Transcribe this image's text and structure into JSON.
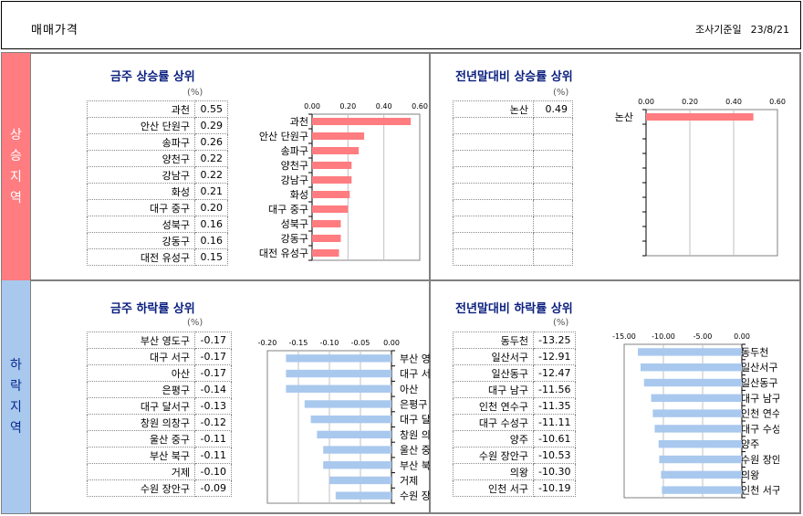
{
  "header": {
    "title": "매매가격",
    "date_label": "조사기준일",
    "date_value": "23/8/21"
  },
  "regions": {
    "rise": "상승지역",
    "fall": "하락지역"
  },
  "unit": "(%)",
  "panels": {
    "weekly_rise": {
      "title": "금주 상승률 상위",
      "rows": [
        {
          "name": "과천",
          "value": "0.55"
        },
        {
          "name": "안산 단원구",
          "value": "0.29"
        },
        {
          "name": "송파구",
          "value": "0.26"
        },
        {
          "name": "양천구",
          "value": "0.22"
        },
        {
          "name": "강남구",
          "value": "0.22"
        },
        {
          "name": "화성",
          "value": "0.21"
        },
        {
          "name": "대구 중구",
          "value": "0.20"
        },
        {
          "name": "성북구",
          "value": "0.16"
        },
        {
          "name": "강동구",
          "value": "0.16"
        },
        {
          "name": "대전 유성구",
          "value": "0.15"
        }
      ]
    },
    "ytd_rise": {
      "title": "전년말대비 상승률 상위",
      "rows": [
        {
          "name": "논산",
          "value": "0.49"
        },
        {
          "name": "",
          "value": ""
        },
        {
          "name": "",
          "value": ""
        },
        {
          "name": "",
          "value": ""
        },
        {
          "name": "",
          "value": ""
        },
        {
          "name": "",
          "value": ""
        },
        {
          "name": "",
          "value": ""
        },
        {
          "name": "",
          "value": ""
        },
        {
          "name": "",
          "value": ""
        },
        {
          "name": "",
          "value": ""
        }
      ]
    },
    "weekly_fall": {
      "title": "금주 하락률 상위",
      "rows": [
        {
          "name": "부산 영도구",
          "value": "-0.17"
        },
        {
          "name": "대구 서구",
          "value": "-0.17"
        },
        {
          "name": "아산",
          "value": "-0.17"
        },
        {
          "name": "은평구",
          "value": "-0.14"
        },
        {
          "name": "대구 달서구",
          "value": "-0.13"
        },
        {
          "name": "창원 의창구",
          "value": "-0.12"
        },
        {
          "name": "울산 중구",
          "value": "-0.11"
        },
        {
          "name": "부산 북구",
          "value": "-0.11"
        },
        {
          "name": "거제",
          "value": "-0.10"
        },
        {
          "name": "수원 장안구",
          "value": "-0.09"
        }
      ]
    },
    "ytd_fall": {
      "title": "전년말대비 하락률 상위",
      "rows": [
        {
          "name": "동두천",
          "value": "-13.25"
        },
        {
          "name": "일산서구",
          "value": "-12.91"
        },
        {
          "name": "일산동구",
          "value": "-12.47"
        },
        {
          "name": "대구 남구",
          "value": "-11.56"
        },
        {
          "name": "인천 연수구",
          "value": "-11.35"
        },
        {
          "name": "대구 수성구",
          "value": "-11.11"
        },
        {
          "name": "양주",
          "value": "-10.61"
        },
        {
          "name": "수원 장안구",
          "value": "-10.53"
        },
        {
          "name": "의왕",
          "value": "-10.30"
        },
        {
          "name": "인천 서구",
          "value": "-10.19"
        }
      ]
    }
  },
  "chart_data": [
    {
      "id": "weekly_rise",
      "type": "bar",
      "orientation": "horizontal",
      "title": "금주 상승률 상위",
      "categories": [
        "과천",
        "안산 단원구",
        "송파구",
        "양천구",
        "강남구",
        "화성",
        "대구 중구",
        "성북구",
        "강동구",
        "대전 유성구"
      ],
      "values": [
        0.55,
        0.29,
        0.26,
        0.22,
        0.22,
        0.21,
        0.2,
        0.16,
        0.16,
        0.15
      ],
      "xlim": [
        0,
        0.6
      ],
      "ticks": [
        0,
        0.2,
        0.4,
        0.6
      ],
      "tick_labels": [
        "0.00",
        "0.20",
        "0.40",
        "0.60"
      ],
      "color": "#ff7c80",
      "label_side": "left"
    },
    {
      "id": "ytd_rise",
      "type": "bar",
      "orientation": "horizontal",
      "title": "전년말대비 상승률 상위",
      "categories": [
        "논산"
      ],
      "values": [
        0.49
      ],
      "xlim": [
        0,
        0.6
      ],
      "ticks": [
        0,
        0.2,
        0.4,
        0.6
      ],
      "tick_labels": [
        "0.00",
        "0.20",
        "0.40",
        "0.60"
      ],
      "color": "#ff7c80",
      "label_side": "left"
    },
    {
      "id": "weekly_fall",
      "type": "bar",
      "orientation": "horizontal",
      "title": "금주 하락률 상위",
      "categories": [
        "부산 영도구",
        "대구 서구",
        "아산",
        "은평구",
        "대구 달서구",
        "창원 의창구",
        "울산 중구",
        "부산 북구",
        "거제",
        "수원 장안구"
      ],
      "values": [
        -0.17,
        -0.17,
        -0.17,
        -0.14,
        -0.13,
        -0.12,
        -0.11,
        -0.11,
        -0.1,
        -0.09
      ],
      "xlim": [
        -0.2,
        0
      ],
      "ticks": [
        -0.2,
        -0.15,
        -0.1,
        -0.05,
        0
      ],
      "tick_labels": [
        "-0.20",
        "-0.15",
        "-0.10",
        "-0.05",
        "0.00"
      ],
      "color": "#a9c8ee",
      "label_side": "right"
    },
    {
      "id": "ytd_fall",
      "type": "bar",
      "orientation": "horizontal",
      "title": "전년말대비 하락률 상위",
      "categories": [
        "동두천",
        "일산서구",
        "일산동구",
        "대구 남구",
        "인천 연수구",
        "대구 수성구",
        "양주",
        "수원 장안구",
        "의왕",
        "인천 서구"
      ],
      "values": [
        -13.25,
        -12.91,
        -12.47,
        -11.56,
        -11.35,
        -11.11,
        -10.61,
        -10.53,
        -10.3,
        -10.19
      ],
      "xlim": [
        -15,
        0
      ],
      "ticks": [
        -15,
        -10,
        -5,
        0
      ],
      "tick_labels": [
        "-15.00",
        "-10.00",
        "-5.00",
        "0.00"
      ],
      "color": "#a9c8ee",
      "label_side": "right"
    }
  ]
}
